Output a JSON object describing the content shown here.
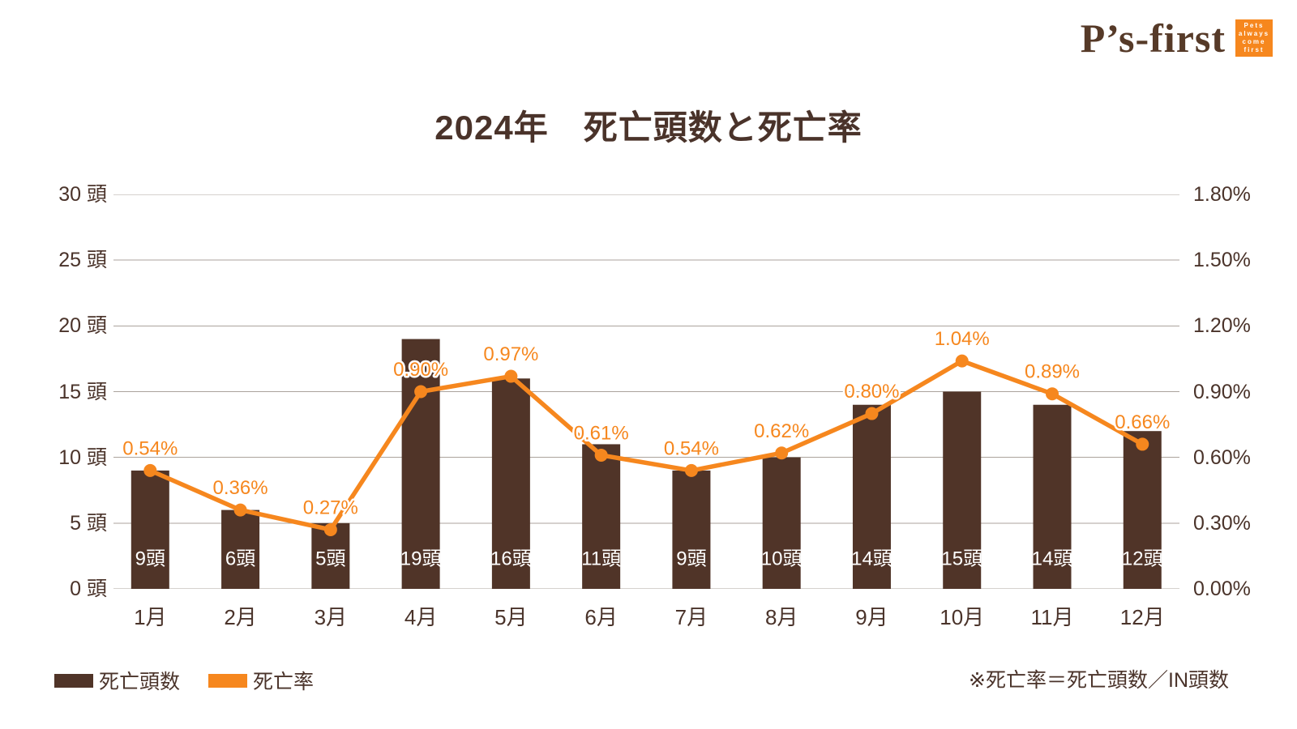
{
  "logo": {
    "brand": "P’s-first",
    "badge_lines": [
      "Pets",
      "always",
      "come",
      "first"
    ]
  },
  "title": "2024年　死亡頭数と死亡率",
  "chart_data": {
    "type": "bar+line combo",
    "categories": [
      "1月",
      "2月",
      "3月",
      "4月",
      "5月",
      "6月",
      "7月",
      "8月",
      "9月",
      "10月",
      "11月",
      "12月"
    ],
    "series": [
      {
        "name": "死亡頭数",
        "type": "bar",
        "axis": "left",
        "unit": "頭",
        "values": [
          9,
          6,
          5,
          19,
          16,
          11,
          9,
          10,
          14,
          15,
          14,
          12
        ],
        "bar_labels": [
          "9頭",
          "6頭",
          "5頭",
          "19頭",
          "16頭",
          "11頭",
          "9頭",
          "10頭",
          "14頭",
          "15頭",
          "14頭",
          "12頭"
        ],
        "color": "#503428"
      },
      {
        "name": "死亡率",
        "type": "line",
        "axis": "right",
        "unit": "%",
        "values": [
          0.54,
          0.36,
          0.27,
          0.9,
          0.97,
          0.61,
          0.54,
          0.62,
          0.8,
          1.04,
          0.89,
          0.66
        ],
        "point_labels": [
          "0.54%",
          "0.36%",
          "0.27%",
          "0.90%",
          "0.97%",
          "0.61%",
          "0.54%",
          "0.62%",
          "0.80%",
          "1.04%",
          "0.89%",
          "0.66%"
        ],
        "color": "#F6871E"
      }
    ],
    "left_axis": {
      "min": 0,
      "max": 30,
      "ticks": [
        "30 頭",
        "25 頭",
        "20 頭",
        "15 頭",
        "10 頭",
        "5 頭",
        "0 頭"
      ]
    },
    "right_axis": {
      "min": 0,
      "max": 1.8,
      "ticks": [
        "1.80%",
        "1.50%",
        "1.20%",
        "0.90%",
        "0.60%",
        "0.30%",
        "0.00%"
      ]
    },
    "grid": true,
    "legend_position": "bottom-left"
  },
  "legend": {
    "items": [
      {
        "label": "死亡頭数",
        "color": "#503428"
      },
      {
        "label": "死亡率",
        "color": "#F6871E"
      }
    ]
  },
  "footnote": "※死亡率＝死亡頭数／IN頭数",
  "colors": {
    "text": "#4A332A",
    "bar": "#503428",
    "line": "#F6871E",
    "grid": "#ABA39C",
    "bar_label": "#FFFFFF",
    "logo_brown": "#563A28",
    "logo_orange": "#F6871E",
    "background": "#FFFFFF"
  }
}
